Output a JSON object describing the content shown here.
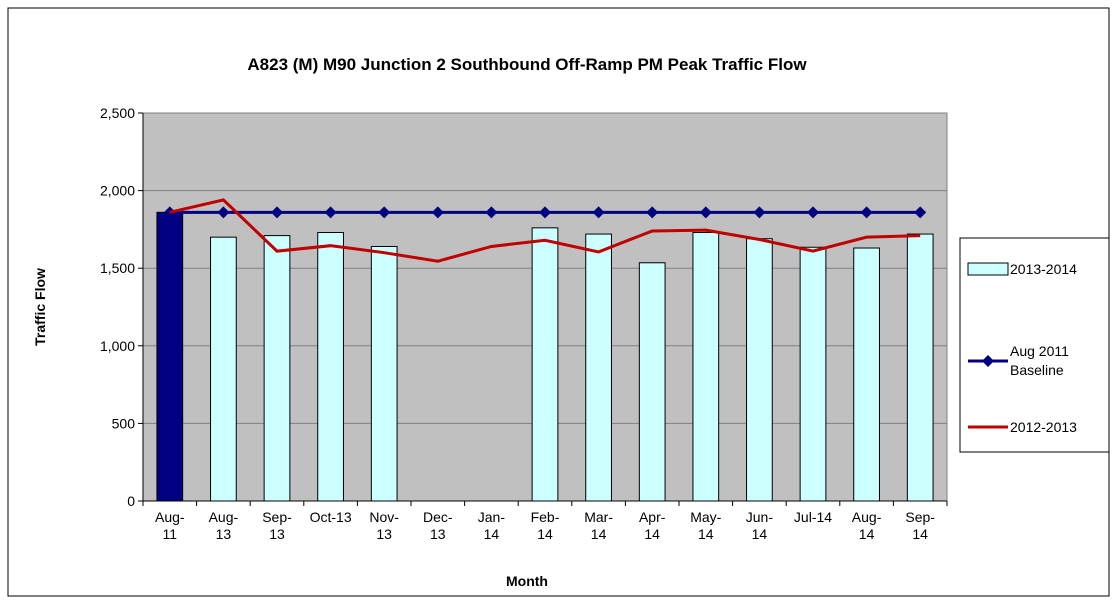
{
  "chart_data": {
    "type": "bar_line",
    "title": "A823 (M) M90 Junction 2 Southbound Off-Ramp PM Peak Traffic Flow",
    "x_label": "Month",
    "y_label": "Traffic Flow",
    "categories": [
      "Aug-11",
      "Aug-13",
      "Sep-13",
      "Oct-13",
      "Nov-13",
      "Dec-13",
      "Jan-14",
      "Feb-14",
      "Mar-14",
      "Apr-14",
      "May-14",
      "Jun-14",
      "Jul-14",
      "Aug-14",
      "Sep-14"
    ],
    "ylim": [
      0,
      2500
    ],
    "yticks": [
      0,
      500,
      {
        "value": 1000,
        "label": "1,000"
      },
      {
        "value": 1500,
        "label": "1,500"
      },
      {
        "value": 2000,
        "label": "2,000"
      },
      {
        "value": 2500,
        "label": "2,500"
      }
    ],
    "grid": true,
    "legend": "right",
    "series": [
      {
        "name": "2013-2014",
        "type": "bar",
        "color": "#ccffff",
        "point_colors": [
          "#000080",
          "#ccffff",
          "#ccffff",
          "#ccffff",
          "#ccffff",
          "#ccffff",
          "#ccffff",
          "#ccffff",
          "#ccffff",
          "#ccffff",
          "#ccffff",
          "#ccffff",
          "#ccffff",
          "#ccffff",
          "#ccffff"
        ],
        "values": [
          1860,
          1700,
          1710,
          1730,
          1640,
          null,
          null,
          1760,
          1720,
          1535,
          1730,
          1690,
          1635,
          1630,
          1720
        ]
      },
      {
        "name": "Aug 2011 Baseline",
        "type": "line",
        "marker": "diamond",
        "color": "#000080",
        "values": [
          1860,
          1860,
          1860,
          1860,
          1860,
          1860,
          1860,
          1860,
          1860,
          1860,
          1860,
          1860,
          1860,
          1860,
          1860
        ]
      },
      {
        "name": "2012-2013",
        "type": "line",
        "color": "#c00000",
        "values": [
          1860,
          1940,
          1610,
          1645,
          1600,
          1545,
          1640,
          1680,
          1605,
          1740,
          1745,
          1685,
          1610,
          1700,
          1710
        ]
      }
    ]
  }
}
